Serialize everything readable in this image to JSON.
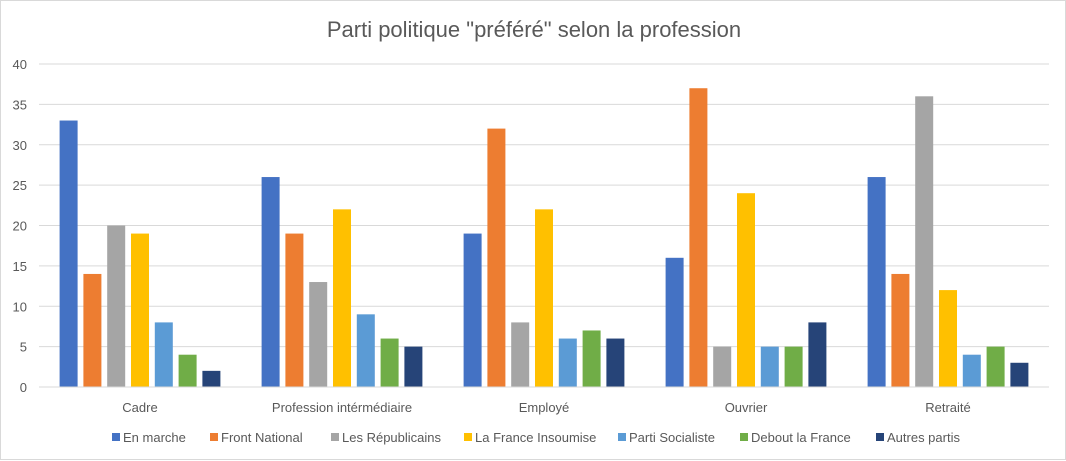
{
  "chart_data": {
    "type": "bar",
    "title": "Parti politique \"préféré\" selon la profession",
    "xlabel": "",
    "ylabel": "",
    "ylim": [
      0,
      40
    ],
    "yticks": [
      0,
      5,
      10,
      15,
      20,
      25,
      30,
      35,
      40
    ],
    "grid": true,
    "legend_position": "bottom",
    "categories": [
      "Cadre",
      "Profession intérmédiaire",
      "Employé",
      "Ouvrier",
      "Retraité"
    ],
    "series": [
      {
        "name": "En marche",
        "color": "#4472c4",
        "values": [
          33,
          26,
          19,
          16,
          26
        ]
      },
      {
        "name": "Front National",
        "color": "#ed7d31",
        "values": [
          14,
          19,
          32,
          37,
          14
        ]
      },
      {
        "name": "Les Républicains",
        "color": "#a5a5a5",
        "values": [
          20,
          13,
          8,
          5,
          36
        ]
      },
      {
        "name": "La France Insoumise",
        "color": "#ffc000",
        "values": [
          19,
          22,
          22,
          24,
          12
        ]
      },
      {
        "name": "Parti Socialiste",
        "color": "#5b9bd5",
        "values": [
          8,
          9,
          6,
          5,
          4
        ]
      },
      {
        "name": "Debout la France",
        "color": "#70ad47",
        "values": [
          4,
          6,
          7,
          5,
          5
        ]
      },
      {
        "name": "Autres partis",
        "color": "#264478",
        "values": [
          2,
          5,
          6,
          8,
          3
        ]
      }
    ]
  }
}
